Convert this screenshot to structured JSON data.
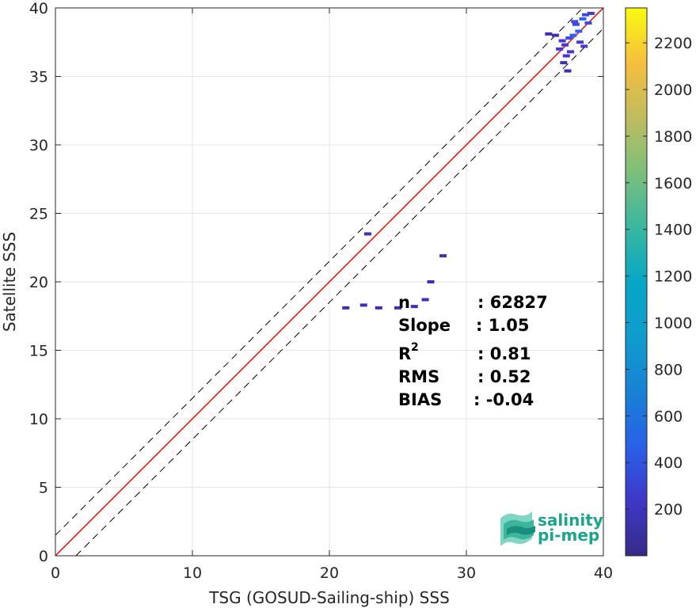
{
  "chart_data": {
    "type": "heatmap",
    "xlabel": "TSG (GOSUD-Sailing-ship) SSS",
    "ylabel": "Satellite SSS",
    "xlim": [
      0,
      40
    ],
    "ylim": [
      0,
      40
    ],
    "x_ticks": [
      "0",
      "10",
      "20",
      "30",
      "40"
    ],
    "y_ticks": [
      "0",
      "5",
      "10",
      "15",
      "20",
      "25",
      "30",
      "35",
      "40"
    ],
    "grid": true,
    "colorbar": {
      "range": [
        0,
        2350
      ],
      "ticks": [
        "200",
        "400",
        "600",
        "800",
        "1000",
        "1200",
        "1400",
        "1600",
        "1800",
        "2000",
        "2200"
      ],
      "colormap": "parula"
    },
    "reference_lines": {
      "one_to_one": {
        "color": "#000000",
        "style": "solid"
      },
      "offset_dashed": {
        "color": "#000000",
        "style": "dashed",
        "offset": 1.5
      },
      "regression": {
        "slope": 1.05,
        "intercept": -1.9,
        "color": "#ff0000",
        "style": "solid"
      }
    },
    "density_cells": [
      {
        "x": 38.5,
        "y": 39.2,
        "count": 100
      },
      {
        "x": 38.0,
        "y": 38.8,
        "count": 90
      },
      {
        "x": 38.2,
        "y": 38.3,
        "count": 110
      },
      {
        "x": 37.5,
        "y": 37.8,
        "count": 85
      },
      {
        "x": 37.8,
        "y": 38.0,
        "count": 95
      },
      {
        "x": 38.7,
        "y": 39.5,
        "count": 70
      },
      {
        "x": 37.2,
        "y": 37.3,
        "count": 60
      },
      {
        "x": 37.0,
        "y": 37.6,
        "count": 50
      },
      {
        "x": 38.9,
        "y": 38.9,
        "count": 80
      },
      {
        "x": 37.6,
        "y": 36.8,
        "count": 55
      },
      {
        "x": 37.3,
        "y": 36.5,
        "count": 45
      },
      {
        "x": 38.3,
        "y": 37.5,
        "count": 60
      },
      {
        "x": 36.8,
        "y": 37.0,
        "count": 40
      },
      {
        "x": 37.9,
        "y": 39.0,
        "count": 65
      },
      {
        "x": 39.1,
        "y": 39.6,
        "count": 50
      },
      {
        "x": 36.5,
        "y": 38.0,
        "count": 30
      },
      {
        "x": 37.4,
        "y": 35.4,
        "count": 20
      },
      {
        "x": 38.6,
        "y": 37.2,
        "count": 40
      },
      {
        "x": 36.0,
        "y": 38.1,
        "count": 20
      },
      {
        "x": 37.1,
        "y": 36.0,
        "count": 30
      },
      {
        "x": 22.8,
        "y": 23.5,
        "count": 10
      },
      {
        "x": 28.3,
        "y": 21.9,
        "count": 10
      },
      {
        "x": 27.4,
        "y": 20.0,
        "count": 10
      },
      {
        "x": 27.0,
        "y": 18.7,
        "count": 10
      },
      {
        "x": 21.2,
        "y": 18.1,
        "count": 10
      },
      {
        "x": 22.5,
        "y": 18.3,
        "count": 10
      },
      {
        "x": 25.0,
        "y": 18.1,
        "count": 10
      },
      {
        "x": 26.2,
        "y": 18.2,
        "count": 10
      },
      {
        "x": 23.6,
        "y": 18.1,
        "count": 10
      }
    ]
  },
  "stats": {
    "n_label": "n",
    "n_value": ": 62827",
    "slope_label": "Slope",
    "slope_value": ": 1.05",
    "r2_label": "R",
    "r2_sup": "2",
    "r2_value": ": 0.81",
    "rms_label": "RMS",
    "rms_value": ": 0.52",
    "bias_label": "BIAS",
    "bias_value": ": -0.04"
  },
  "logo": {
    "line1": "salinity",
    "line2": "pi-mep"
  }
}
